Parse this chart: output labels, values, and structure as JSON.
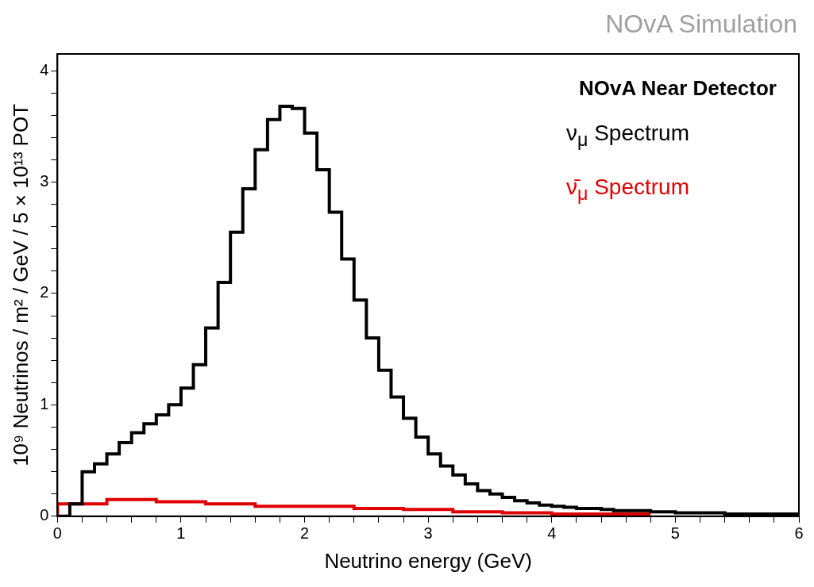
{
  "chart_data": {
    "type": "histogram",
    "xlabel": "Neutrino energy (GeV)",
    "ylabel": "10⁹ Neutrinos / m² / GeV / 5 × 10¹³ POT",
    "annotations": [
      "NOvA Simulation",
      "NOvA Near Detector"
    ],
    "bins": [
      0,
      0.1,
      0.2,
      0.3,
      0.4,
      0.5,
      0.6,
      0.7,
      0.8,
      0.9,
      1,
      1.1,
      1.2,
      1.3,
      1.4,
      1.5,
      1.6,
      1.7,
      1.8,
      1.9,
      2,
      2.1,
      2.2,
      2.3,
      2.4,
      2.5,
      2.6,
      2.7,
      2.8,
      2.9,
      3,
      3.1,
      3.2,
      3.3,
      3.4,
      3.5,
      3.6,
      3.7,
      3.8,
      3.9,
      4,
      4.1,
      4.2,
      4.3,
      4.4,
      4.5,
      4.6,
      4.7,
      4.8,
      4.9,
      5,
      5.1,
      5.2,
      5.3,
      5.4,
      5.5,
      5.6,
      5.7,
      5.8,
      5.9,
      6
    ],
    "series": [
      {
        "name": "ν$_{μ}$ Spectrum",
        "color": "#000000",
        "values": [
          0,
          0.11,
          0.4,
          0.47,
          0.56,
          0.66,
          0.75,
          0.83,
          0.91,
          1.0,
          1.15,
          1.36,
          1.69,
          2.1,
          2.55,
          2.94,
          3.29,
          3.56,
          3.68,
          3.66,
          3.44,
          3.11,
          2.73,
          2.31,
          1.94,
          1.6,
          1.31,
          1.07,
          0.88,
          0.71,
          0.56,
          0.45,
          0.37,
          0.29,
          0.23,
          0.2,
          0.17,
          0.14,
          0.12,
          0.1,
          0.09,
          0.08,
          0.07,
          0.07,
          0.06,
          0.05,
          0.05,
          0.05,
          0.04,
          0.04,
          0.03,
          0.03,
          0.03,
          0.03,
          0.02,
          0.02,
          0.02,
          0.02,
          0.02,
          0.02
        ]
      },
      {
        "name": "ν̄$_{μ}$ Spectrum",
        "color": "#e00000",
        "bins": [
          0,
          0.1,
          0.2,
          0.3,
          0.4,
          0.5,
          0.6,
          0.7,
          0.8,
          0.9,
          1,
          1.1,
          1.2,
          1.3,
          1.4,
          1.5,
          1.6,
          1.7,
          1.8,
          1.9,
          2,
          2.1,
          2.2,
          2.3,
          2.4,
          2.5,
          2.6,
          2.7,
          2.8,
          2.9,
          3,
          3.1,
          3.2,
          3.3,
          3.4,
          3.5,
          3.6,
          3.7,
          3.8,
          3.9,
          4,
          4.1,
          4.2,
          4.3,
          4.4,
          4.5,
          4.6,
          4.7,
          4.8
        ],
        "values": [
          0.11,
          0.11,
          0.11,
          0.11,
          0.15,
          0.15,
          0.15,
          0.15,
          0.13,
          0.13,
          0.13,
          0.13,
          0.11,
          0.11,
          0.11,
          0.11,
          0.09,
          0.09,
          0.09,
          0.09,
          0.09,
          0.09,
          0.09,
          0.09,
          0.07,
          0.07,
          0.07,
          0.07,
          0.06,
          0.06,
          0.06,
          0.06,
          0.04,
          0.04,
          0.04,
          0.04,
          0.03,
          0.03,
          0.03,
          0.03,
          0.02,
          0.02,
          0.02,
          0.02,
          0.02,
          0.02,
          0.02,
          0.02
        ]
      }
    ],
    "xlim": [
      0,
      6
    ],
    "xticks": [
      0,
      {
        "value": 0.2,
        "label": null
      },
      {
        "value": 0.4,
        "label": null
      },
      {
        "value": 0.6,
        "label": null
      },
      {
        "value": 0.8,
        "label": null
      },
      1,
      {
        "value": 1.2,
        "label": null
      },
      {
        "value": 1.4,
        "label": null
      },
      {
        "value": 1.6,
        "label": null
      },
      {
        "value": 1.8,
        "label": null
      },
      2,
      {
        "value": 2.2,
        "label": null
      },
      {
        "value": 2.4,
        "label": null
      },
      {
        "value": 2.6,
        "label": null
      },
      {
        "value": 2.8,
        "label": null
      },
      3,
      {
        "value": 3.2,
        "label": null
      },
      {
        "value": 3.4,
        "label": null
      },
      {
        "value": 3.6,
        "label": null
      },
      {
        "value": 3.8,
        "label": null
      },
      4,
      {
        "value": 4.2,
        "label": null
      },
      {
        "value": 4.4,
        "label": null
      },
      {
        "value": 4.6,
        "label": null
      },
      {
        "value": 4.8,
        "label": null
      },
      5,
      {
        "value": 5.2,
        "label": null
      },
      {
        "value": 5.4,
        "label": null
      },
      {
        "value": 5.6,
        "label": null
      },
      {
        "value": 5.8,
        "label": null
      },
      6
    ],
    "ylim": [
      0,
      4.15
    ],
    "yticks": [
      0,
      {
        "value": 0.2,
        "label": null
      },
      {
        "value": 0.4,
        "label": null
      },
      {
        "value": 0.6,
        "label": null
      },
      {
        "value": 0.8,
        "label": null
      },
      1,
      {
        "value": 1.2,
        "label": null
      },
      {
        "value": 1.4,
        "label": null
      },
      {
        "value": 1.6,
        "label": null
      },
      {
        "value": 1.8,
        "label": null
      },
      2,
      {
        "value": 2.2,
        "label": null
      },
      {
        "value": 2.4,
        "label": null
      },
      {
        "value": 2.6,
        "label": null
      },
      {
        "value": 2.8,
        "label": null
      },
      3,
      {
        "value": 3.2,
        "label": null
      },
      {
        "value": 3.4,
        "label": null
      },
      {
        "value": 3.6,
        "label": null
      },
      {
        "value": 3.8,
        "label": null
      },
      4
    ],
    "grid": false
  }
}
